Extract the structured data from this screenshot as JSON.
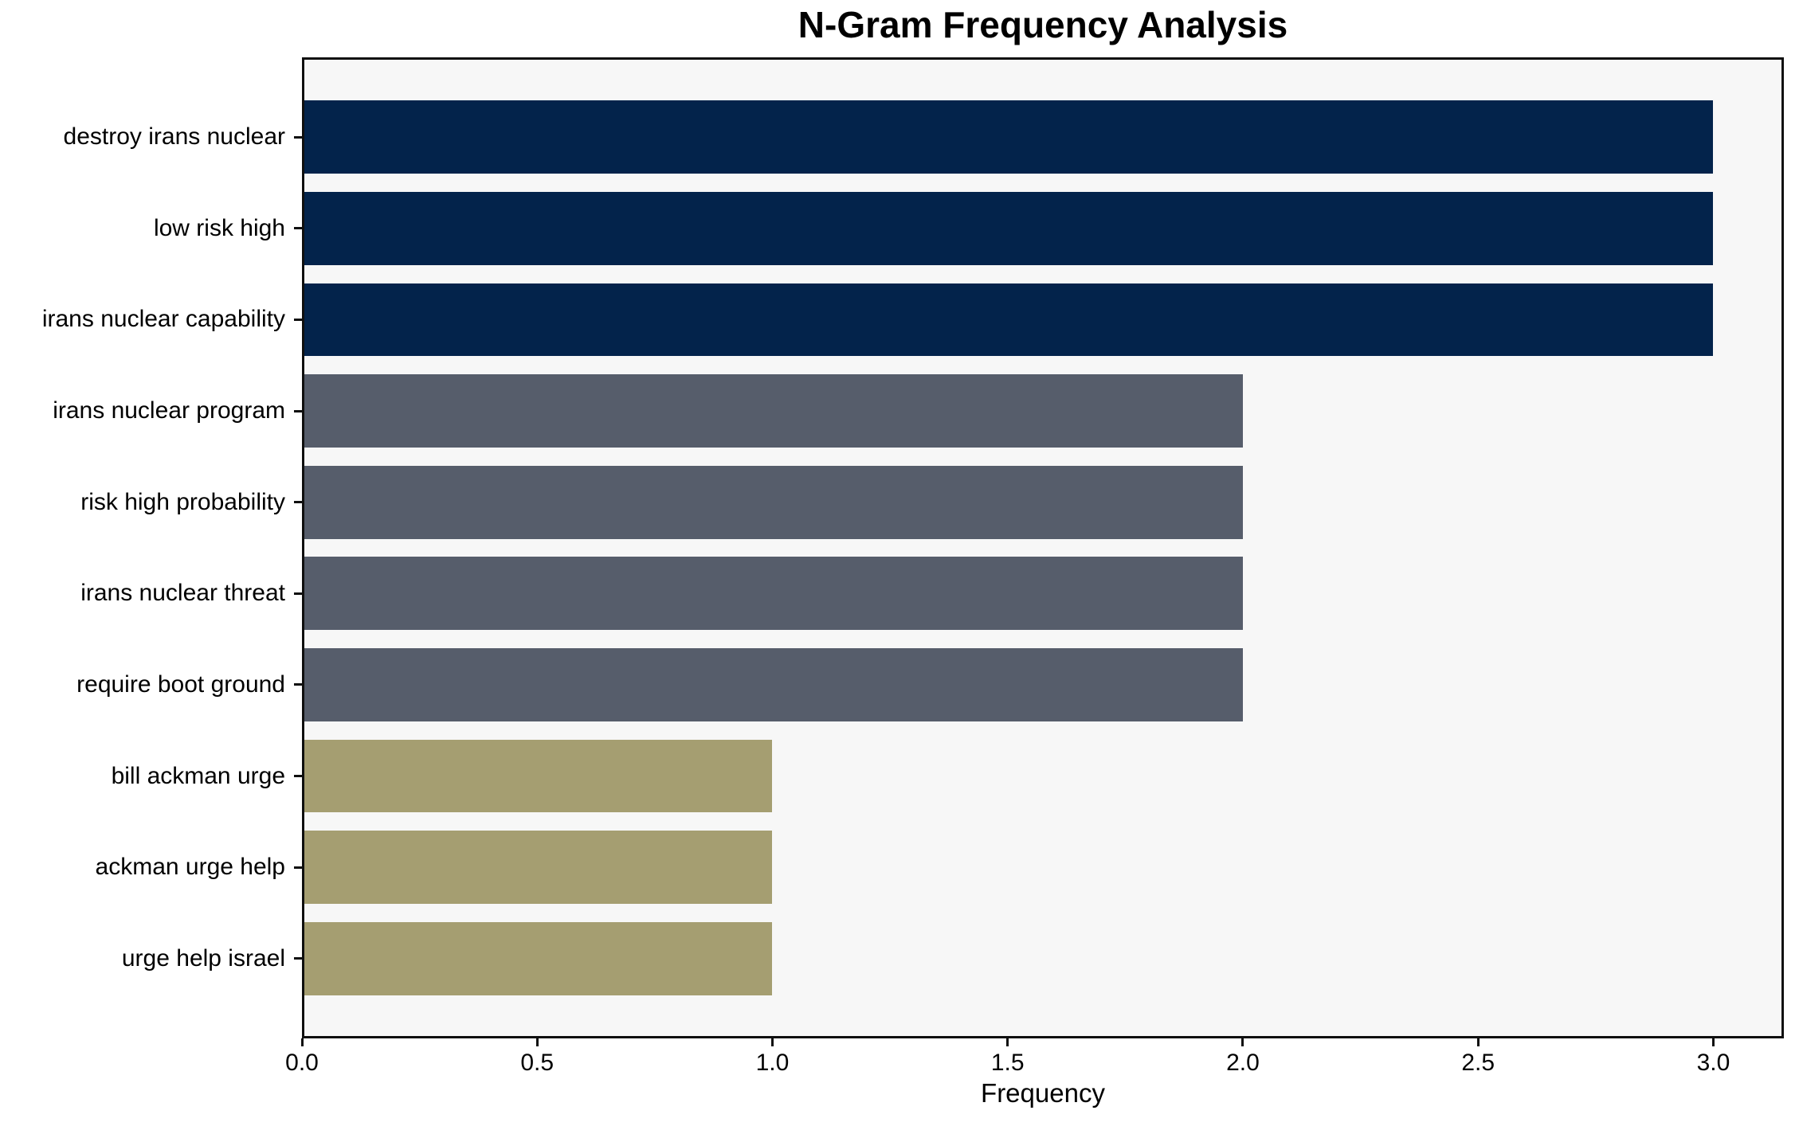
{
  "chart_data": {
    "type": "bar",
    "orientation": "horizontal",
    "title": "N-Gram Frequency Analysis",
    "xlabel": "Frequency",
    "ylabel": "",
    "categories": [
      "destroy irans nuclear",
      "low risk high",
      "irans nuclear capability",
      "irans nuclear program",
      "risk high probability",
      "irans nuclear threat",
      "require boot ground",
      "bill ackman urge",
      "ackman urge help",
      "urge help israel"
    ],
    "values": [
      3,
      3,
      3,
      2,
      2,
      2,
      2,
      1,
      1,
      1
    ],
    "bar_colors": [
      "#03234B",
      "#03234B",
      "#03234B",
      "#565D6B",
      "#565D6B",
      "#565D6B",
      "#565D6B",
      "#A59E71",
      "#A59E71",
      "#A59E71"
    ],
    "palette": {
      "frequency_3": "#03234B",
      "frequency_2": "#565D6B",
      "frequency_1": "#A59E71"
    },
    "xlim": [
      0,
      3.15
    ],
    "xticks": [
      0,
      0.5,
      1,
      1.5,
      2,
      2.5,
      3
    ],
    "xtick_labels": [
      "0.0",
      "0.5",
      "1.0",
      "1.5",
      "2.0",
      "2.5",
      "3.0"
    ],
    "bar_width_fraction": 0.8,
    "grid": false,
    "legend": null,
    "plot_background": "#F7F7F7",
    "figure_background": "#FFFFFF",
    "axis_color": "#0F0F0F"
  }
}
